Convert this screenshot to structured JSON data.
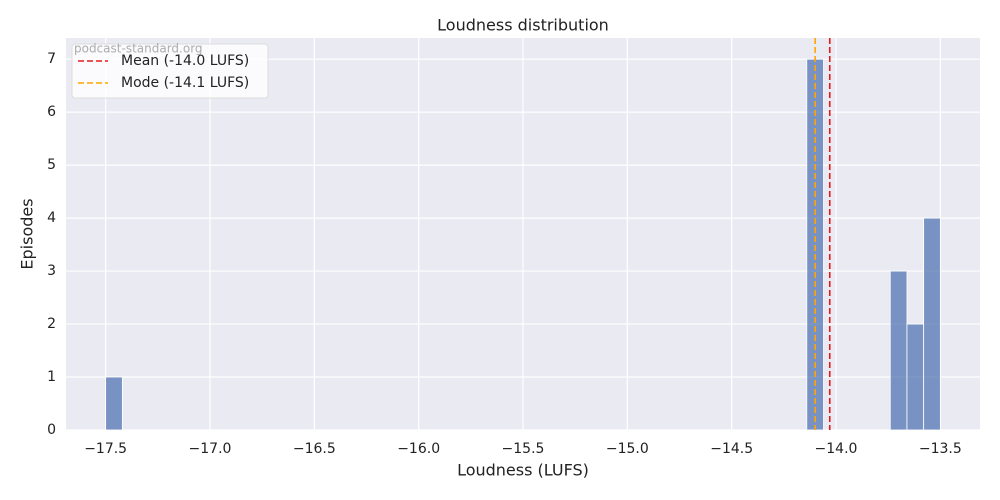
{
  "chart_data": {
    "type": "histogram",
    "title": "Loudness distribution",
    "x_label": "Loudness (LUFS)",
    "y_label": "Episodes",
    "watermark": "podcast-standard.org",
    "bins": [
      -17.5,
      -17.42,
      -17.34,
      -17.26,
      -17.18,
      -17.1,
      -17.02,
      -16.94,
      -16.86,
      -16.78,
      -16.7,
      -16.62,
      -16.54,
      -16.46,
      -16.38,
      -16.3,
      -16.22,
      -16.14,
      -16.06,
      -15.98,
      -15.9,
      -15.82,
      -15.74,
      -15.66,
      -15.58,
      -15.5,
      -15.42,
      -15.34,
      -15.26,
      -15.18,
      -15.1,
      -15.02,
      -14.94,
      -14.86,
      -14.78,
      -14.7,
      -14.62,
      -14.54,
      -14.46,
      -14.38,
      -14.3,
      -14.22,
      -14.14,
      -14.06,
      -13.98,
      -13.9,
      -13.82,
      -13.74,
      -13.66,
      -13.58,
      -13.5
    ],
    "counts": [
      1,
      0,
      0,
      0,
      0,
      0,
      0,
      0,
      0,
      0,
      0,
      0,
      0,
      0,
      0,
      0,
      0,
      0,
      0,
      0,
      0,
      0,
      0,
      0,
      0,
      0,
      0,
      0,
      0,
      0,
      0,
      0,
      0,
      0,
      0,
      0,
      0,
      0,
      0,
      0,
      0,
      0,
      7,
      0,
      0,
      0,
      0,
      3,
      2,
      4
    ],
    "color": "#4c72b0",
    "lines": [
      {
        "name": "Mean (-14.0 LUFS)",
        "value": -14.03,
        "color": "#e41a1c"
      },
      {
        "name": "Mode (-14.1 LUFS)",
        "value": -14.1,
        "color": "#ffa500"
      }
    ],
    "xlim": [
      -17.69,
      -13.31
    ],
    "xticks": [
      {
        "value": -17.5,
        "label": "−17.5"
      },
      {
        "value": -17.0,
        "label": "−17.0"
      },
      {
        "value": -16.5,
        "label": "−16.5"
      },
      {
        "value": -16.0,
        "label": "−16.0"
      },
      {
        "value": -15.5,
        "label": "−15.5"
      },
      {
        "value": -15.0,
        "label": "−15.0"
      },
      {
        "value": -14.5,
        "label": "−14.5"
      },
      {
        "value": -14.0,
        "label": "−14.0"
      },
      {
        "value": -13.5,
        "label": "−13.5"
      }
    ],
    "ylim": [
      0,
      7.4
    ],
    "yticks": [
      0,
      1,
      2,
      3,
      4,
      5,
      6,
      7
    ],
    "grid": true,
    "legend": "upper left"
  }
}
